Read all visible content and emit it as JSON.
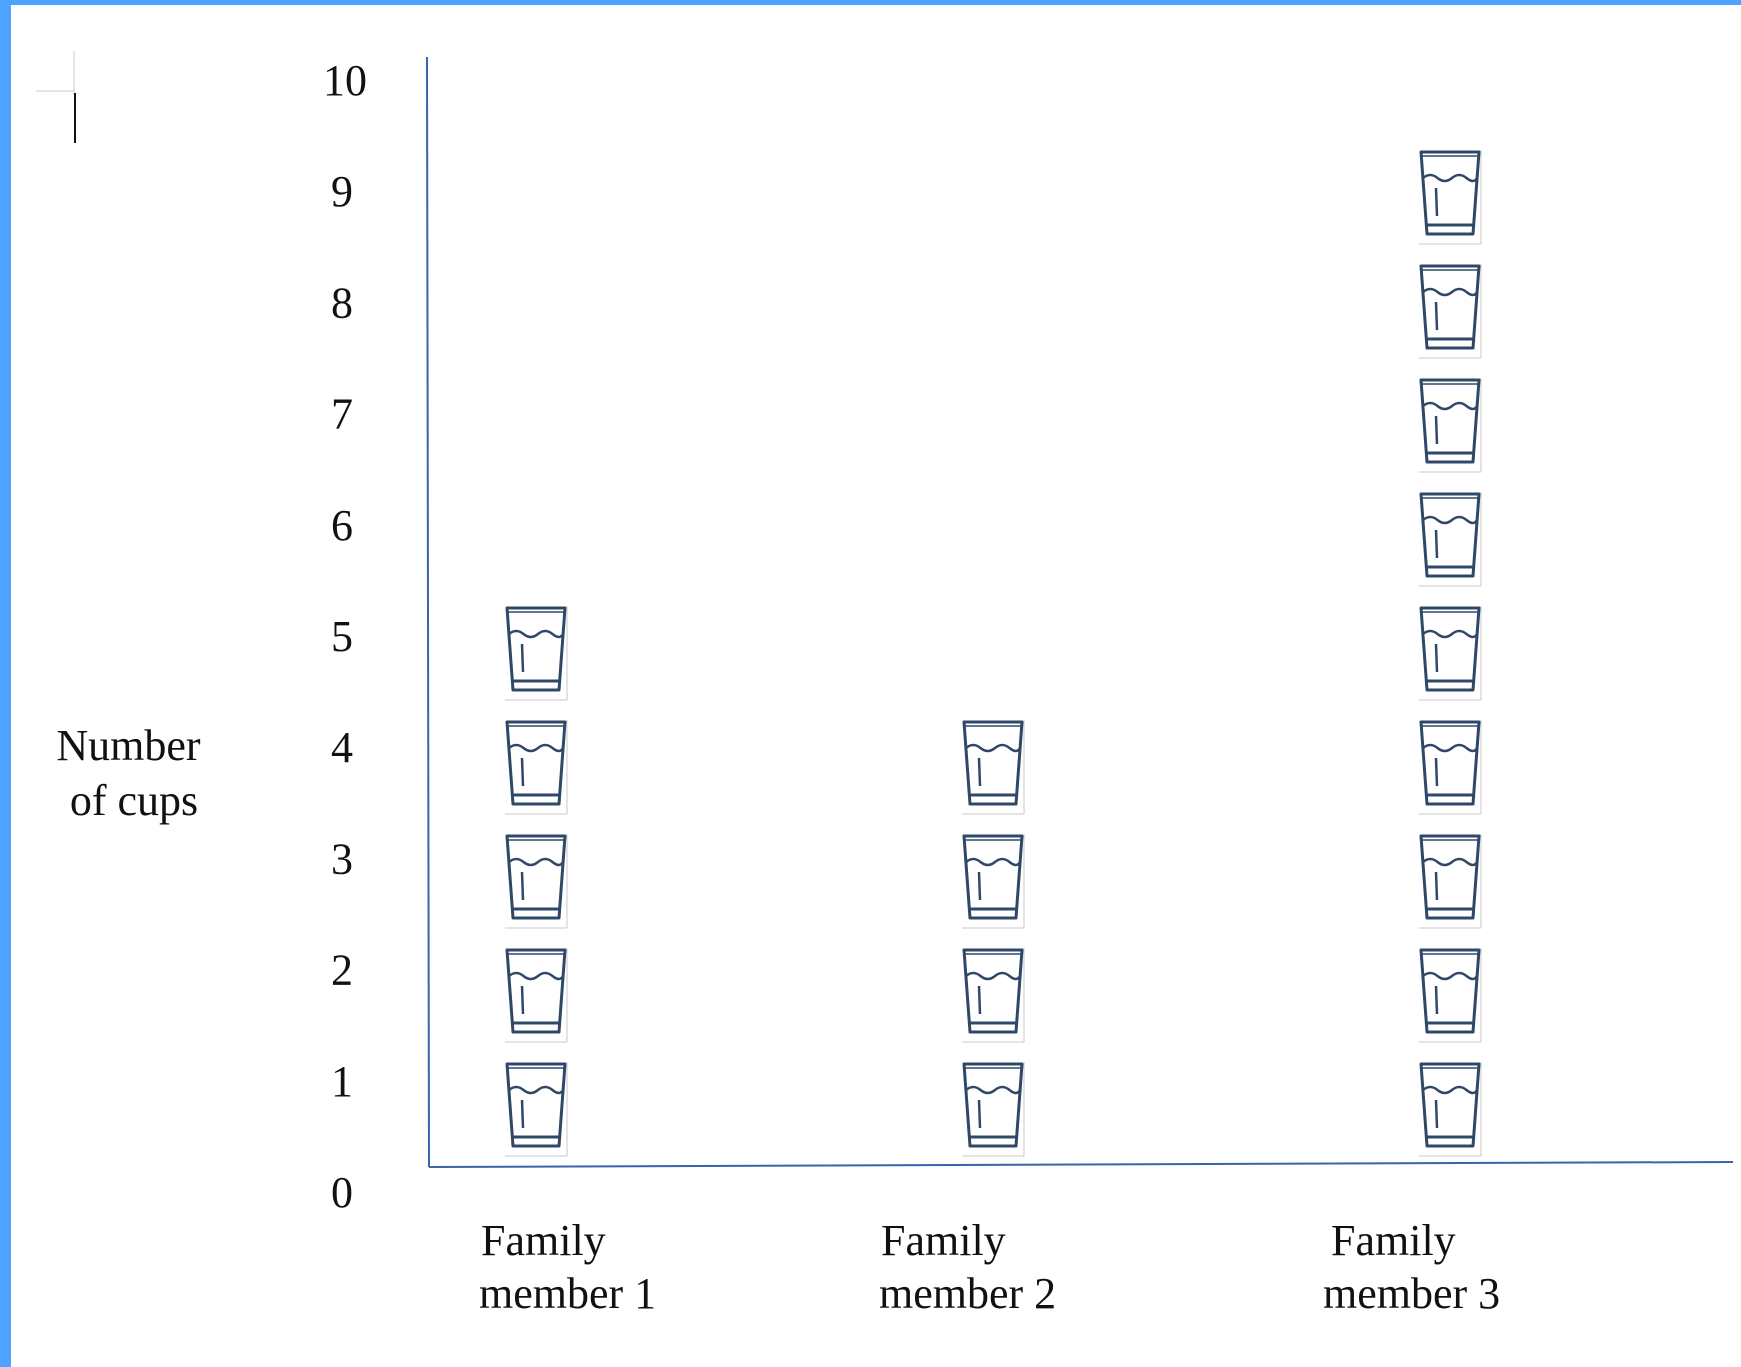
{
  "chart_data": {
    "type": "pictograph",
    "ylabel": [
      "Number",
      "of cups"
    ],
    "ylim": [
      0,
      10
    ],
    "y_ticks": [
      "0",
      "1",
      "2",
      "3",
      "4",
      "5",
      "6",
      "7",
      "8",
      "9",
      "10"
    ],
    "categories": [
      [
        "Family",
        "member 1"
      ],
      [
        "Family",
        "member 2"
      ],
      [
        "Family",
        "member 3"
      ]
    ],
    "values": [
      5,
      4,
      9
    ],
    "icon": "cup-of-water-icon",
    "icon_color": "#2f4868",
    "axis_color": "#3c64a8",
    "grid": false
  }
}
